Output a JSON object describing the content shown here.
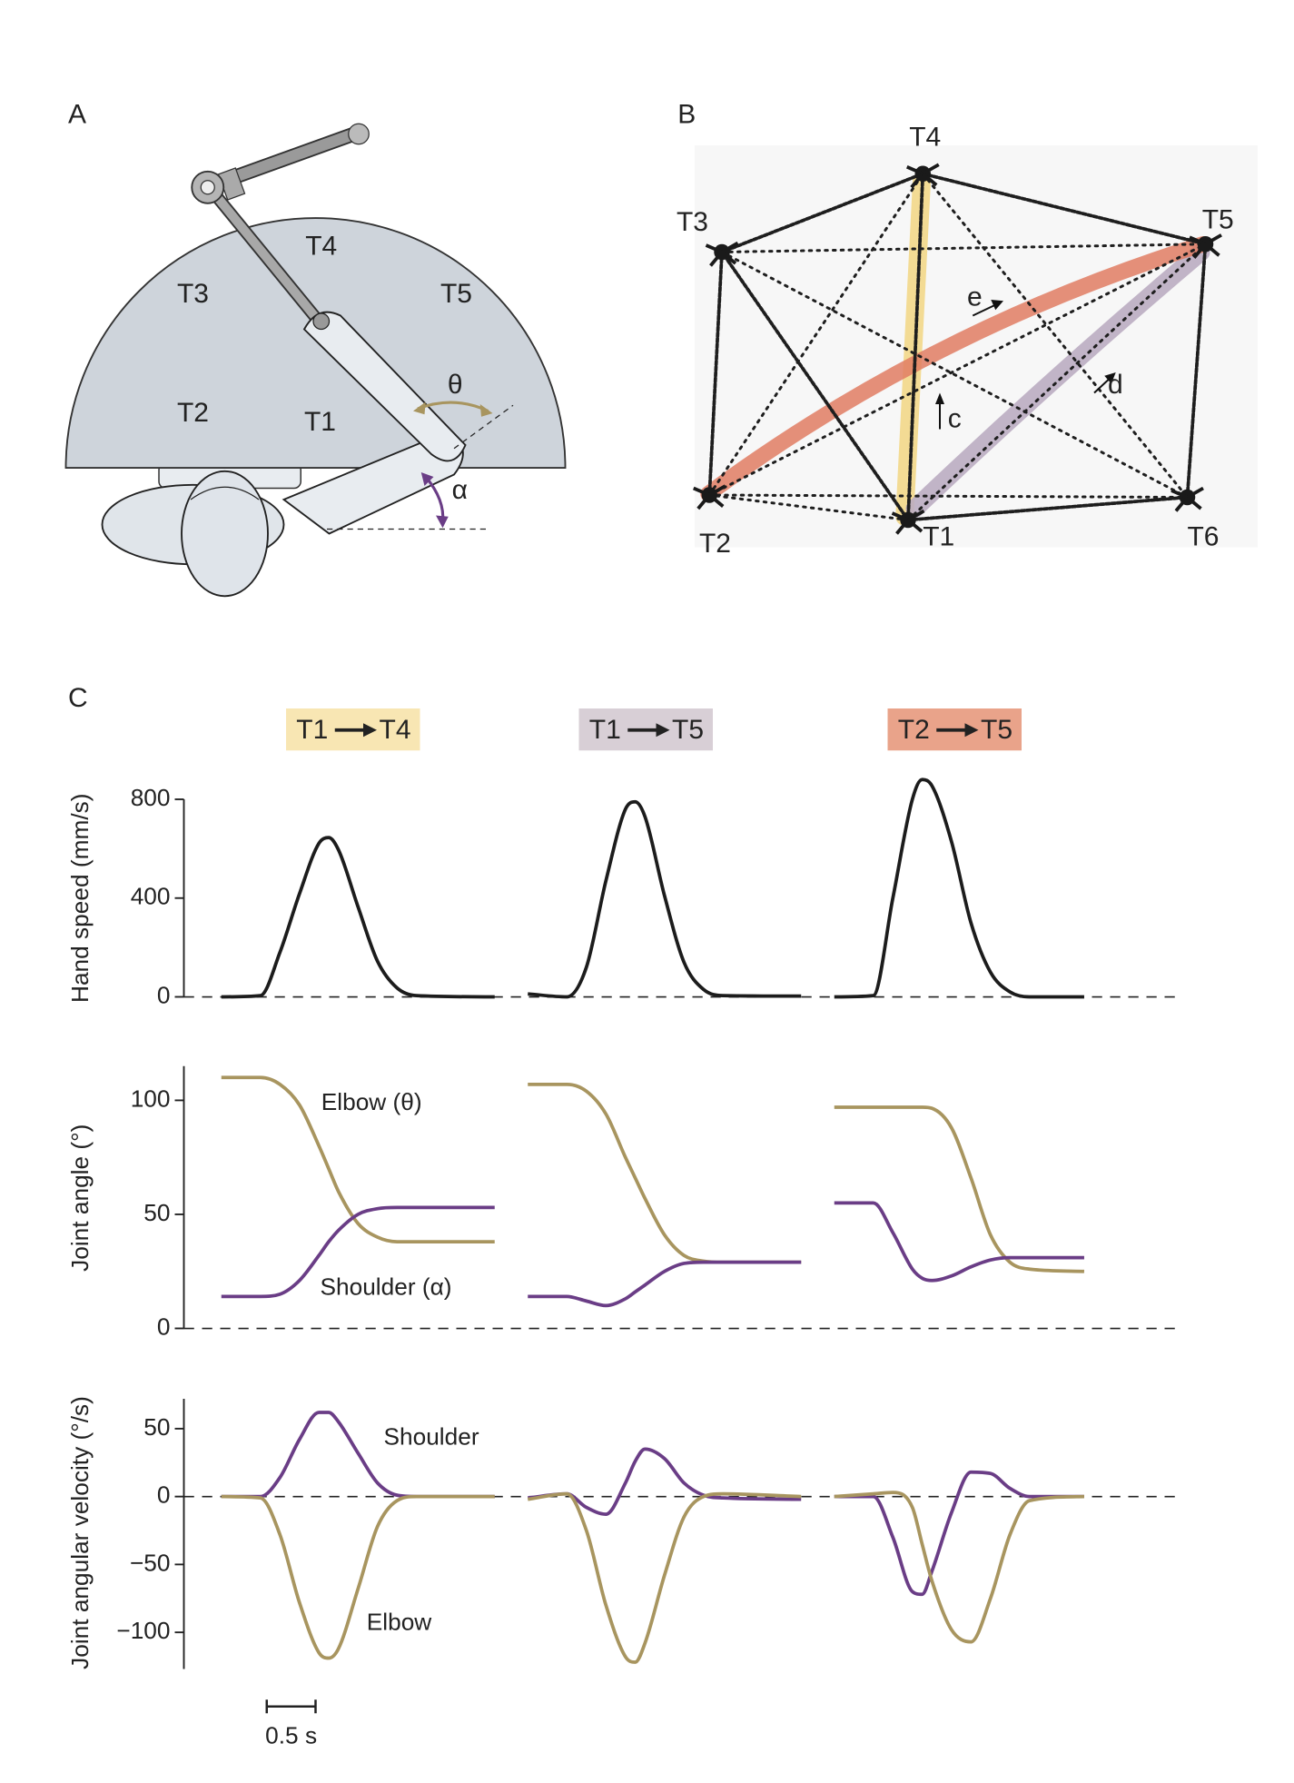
{
  "panel_a": {
    "label": "A",
    "targets": [
      "T1",
      "T2",
      "T3",
      "T4",
      "T5"
    ],
    "angles": [
      "θ",
      "α"
    ]
  },
  "panel_b": {
    "label": "B",
    "targets": [
      "T1",
      "T2",
      "T3",
      "T4",
      "T5",
      "T6"
    ],
    "movements": [
      "c",
      "d",
      "e"
    ]
  },
  "chart_data": {
    "type": "line",
    "label": "C",
    "conditions": [
      {
        "from": "T1",
        "to": "T4",
        "color": "#f8e6b3"
      },
      {
        "from": "T1",
        "to": "T5",
        "color": "#d8cfd6"
      },
      {
        "from": "T2",
        "to": "T5",
        "color": "#e9a38a"
      }
    ],
    "x": [
      [
        0,
        0.4,
        0.6,
        0.8,
        1.0,
        1.1,
        1.2,
        1.4,
        1.6,
        1.8,
        2.0,
        2.8
      ],
      [
        0,
        0.4,
        0.6,
        0.8,
        1.0,
        1.1,
        1.2,
        1.4,
        1.6,
        1.8,
        2.0,
        2.8
      ],
      [
        0,
        0.4,
        0.6,
        0.8,
        0.9,
        1.0,
        1.2,
        1.4,
        1.6,
        1.8,
        2.0,
        2.56
      ]
    ],
    "scale_bar": {
      "value": 0.5,
      "label": "0.5 s"
    },
    "rows": [
      {
        "ylabel": "Hand speed (mm/s)",
        "ylim": [
          0,
          800
        ],
        "yticks": [
          0,
          400,
          800
        ],
        "series": [
          {
            "color": "#1c1c1c",
            "values": [
              [
                0,
                5,
                180,
                417,
                622,
                645,
                595,
                365,
                144,
                36,
                5,
                0
              ],
              [
                12,
                0,
                120,
                470,
                760,
                790,
                730,
                410,
                140,
                30,
                5,
                3
              ],
              [
                0,
                5,
                400,
                800,
                880,
                855,
                630,
                300,
                100,
                20,
                0,
                0
              ]
            ]
          }
        ]
      },
      {
        "ylabel": "Joint angle (°)",
        "ylim": [
          0,
          115
        ],
        "yticks": [
          0,
          50,
          100
        ],
        "series": [
          {
            "name": "Elbow (θ)",
            "color": "#a8955f",
            "values": [
              [
                110,
                110,
                107,
                98,
                80,
                70,
                60,
                46,
                40,
                38,
                38,
                38
              ],
              [
                107,
                107,
                104,
                94,
                75,
                66,
                57,
                41,
                32,
                29.5,
                29,
                29
              ],
              [
                97,
                97,
                97,
                97,
                97,
                96.5,
                88,
                66,
                41,
                29,
                26,
                25
              ]
            ]
          },
          {
            "name": "Shoulder (α)",
            "color": "#6a3d86",
            "values": [
              [
                14,
                14,
                15,
                21,
                32,
                38,
                43,
                50,
                52.5,
                53,
                53,
                53
              ],
              [
                14,
                14,
                12,
                10,
                13,
                16,
                19,
                25,
                28.5,
                29,
                29,
                29
              ],
              [
                55,
                55,
                42,
                26,
                22,
                21,
                23,
                27,
                30,
                31,
                31,
                31
              ]
            ]
          }
        ]
      },
      {
        "ylabel": "Joint angular velocity (°/s)",
        "ylim": [
          -127,
          72
        ],
        "yticks": [
          {
            "value": -100,
            "label": "−100"
          },
          {
            "value": -50,
            "label": "−50"
          },
          0,
          50
        ],
        "series": [
          {
            "name": "Shoulder",
            "color": "#6a3d86",
            "values": [
              [
                0,
                0,
                14,
                42,
                62,
                62,
                55,
                32,
                10,
                1,
                0,
                0
              ],
              [
                -1,
                2,
                -8,
                -13,
                10,
                26,
                35,
                28,
                10,
                1,
                -1,
                -2
              ],
              [
                0,
                0,
                -30,
                -70,
                -72,
                -55,
                -12,
                18,
                17,
                6,
                0,
                0
              ]
            ]
          },
          {
            "name": "Elbow",
            "color": "#a8955f",
            "values": [
              [
                0,
                -1,
                -28,
                -78,
                -115,
                -119,
                -112,
                -68,
                -22,
                -3,
                0,
                0
              ],
              [
                -2,
                2,
                -25,
                -80,
                -118,
                -122,
                -108,
                -58,
                -15,
                0,
                2,
                0
              ],
              [
                0,
                2,
                3,
                -8,
                -35,
                -62,
                -98,
                -107,
                -75,
                -28,
                -3,
                0
              ]
            ]
          }
        ]
      }
    ]
  }
}
